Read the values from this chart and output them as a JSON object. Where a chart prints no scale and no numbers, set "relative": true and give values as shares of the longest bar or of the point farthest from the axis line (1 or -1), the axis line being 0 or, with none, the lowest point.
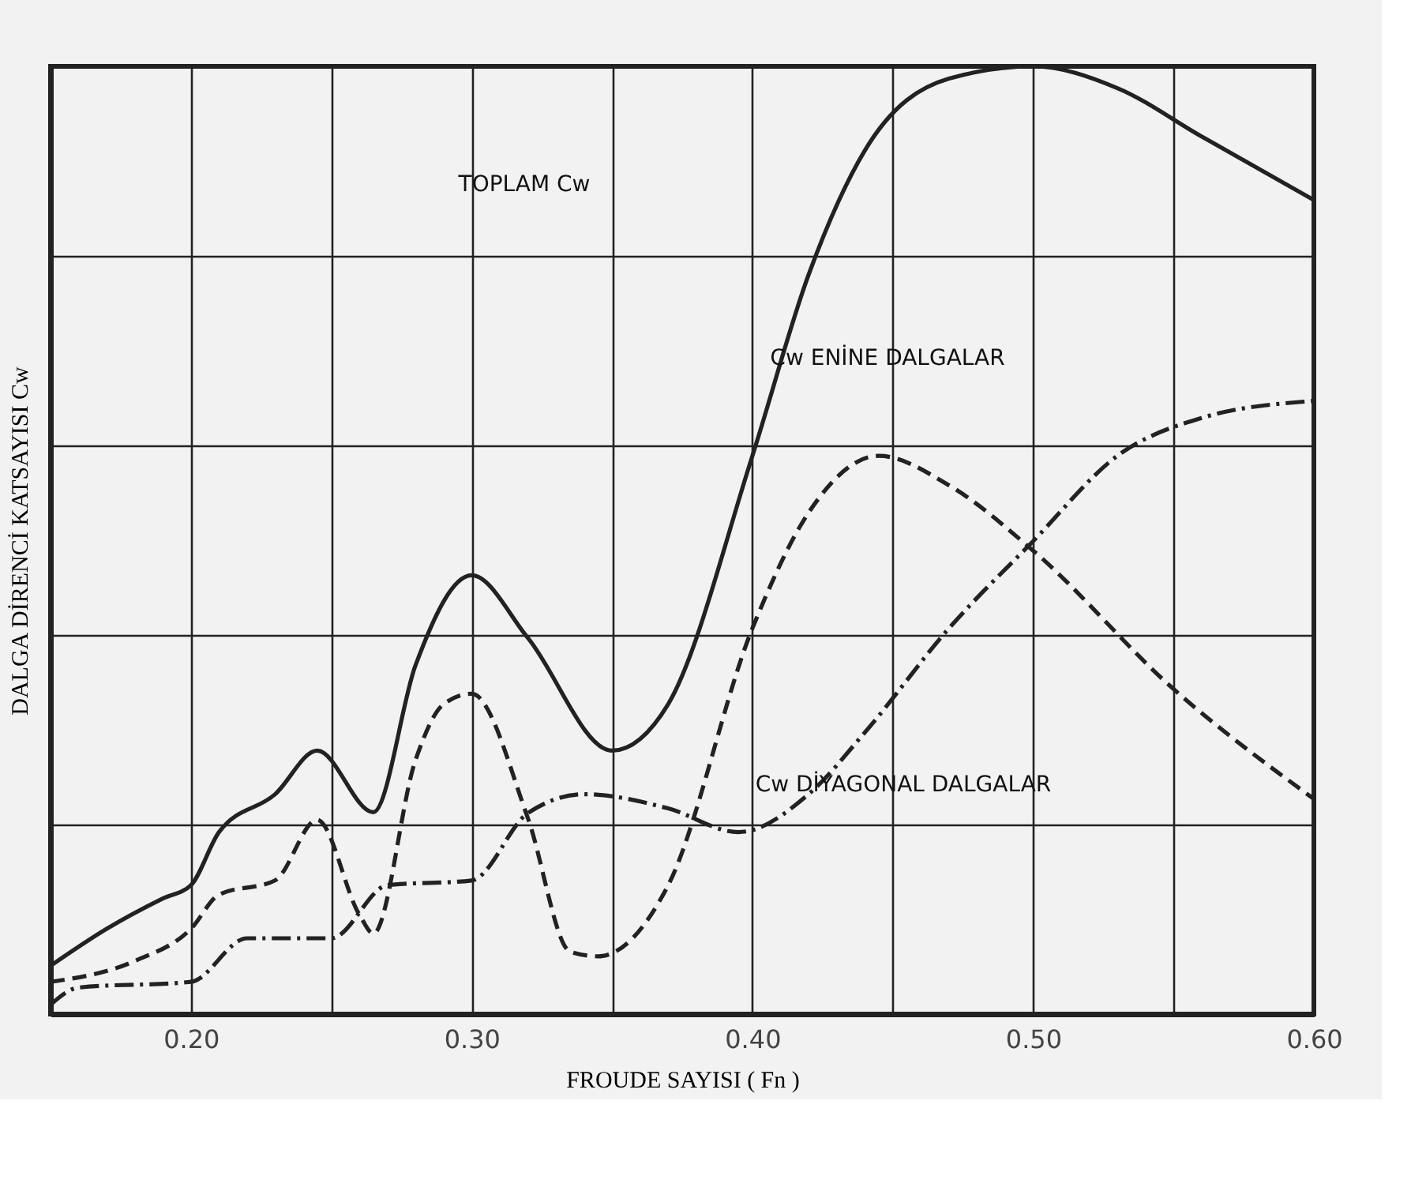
{
  "chart_data": {
    "type": "line",
    "relative": true,
    "xlabel": "FROUDE SAYISI ( Fn )",
    "ylabel": "DALGA DİRENCİ KATSAYISI   Cw",
    "xlim": [
      0.15,
      0.6
    ],
    "xticks": [
      {
        "value": 0.2,
        "label": "0.20"
      },
      {
        "value": 0.25,
        "label": null
      },
      {
        "value": 0.3,
        "label": "0.30"
      },
      {
        "value": 0.35,
        "label": null
      },
      {
        "value": 0.4,
        "label": "0.40"
      },
      {
        "value": 0.45,
        "label": null
      },
      {
        "value": 0.5,
        "label": "0.50"
      },
      {
        "value": 0.55,
        "label": null
      },
      {
        "value": 0.6,
        "label": "0.60"
      }
    ],
    "tick_labels": "x",
    "grid": true,
    "marker": "none",
    "series": [
      {
        "color": "#222222",
        "line_style": "solid",
        "x": [
          0.15,
          0.17,
          0.19,
          0.2,
          0.21,
          0.23,
          0.245,
          0.265,
          0.28,
          0.3,
          0.32,
          0.35,
          0.37,
          0.4,
          0.42,
          0.44,
          0.47,
          0.5,
          0.53,
          0.56,
          0.6
        ],
        "values": [
          0.051,
          0.09,
          0.122,
          0.136,
          0.192,
          0.232,
          0.278,
          0.213,
          0.368,
          0.463,
          0.397,
          0.278,
          0.327,
          0.589,
          0.78,
          0.911,
          0.987,
          1,
          0.977,
          0.926,
          0.859
        ]
      },
      {
        "color": "#222222",
        "line_style": "dashed",
        "x": [
          0.15,
          0.18,
          0.2,
          0.21,
          0.23,
          0.245,
          0.26,
          0.265,
          0.28,
          0.29,
          0.3,
          0.32,
          0.335,
          0.345,
          0.37,
          0.4,
          0.42,
          0.445,
          0.47,
          0.5,
          0.55,
          0.6
        ],
        "values": [
          0.034,
          0.056,
          0.09,
          0.126,
          0.141,
          0.205,
          0.105,
          0.085,
          0.268,
          0.327,
          0.338,
          0.207,
          0.066,
          0.061,
          0.136,
          0.407,
          0.529,
          0.589,
          0.558,
          0.489,
          0.343,
          0.227
        ]
      },
      {
        "color": "#222222",
        "line_style": "dashdot",
        "x": [
          0.15,
          0.16,
          0.2,
          0.22,
          0.25,
          0.27,
          0.3,
          0.32,
          0.34,
          0.37,
          0.395,
          0.42,
          0.44,
          0.47,
          0.5,
          0.53,
          0.56,
          0.6
        ],
        "values": [
          0.01,
          0.028,
          0.034,
          0.08,
          0.08,
          0.136,
          0.141,
          0.212,
          0.232,
          0.217,
          0.192,
          0.232,
          0.297,
          0.407,
          0.499,
          0.589,
          0.629,
          0.647
        ]
      }
    ],
    "annotations": [
      "TOPLAM  Cw",
      "Cw  ENİNE DALGALAR",
      "Cw  DİYAGONAL DALGALAR"
    ]
  }
}
